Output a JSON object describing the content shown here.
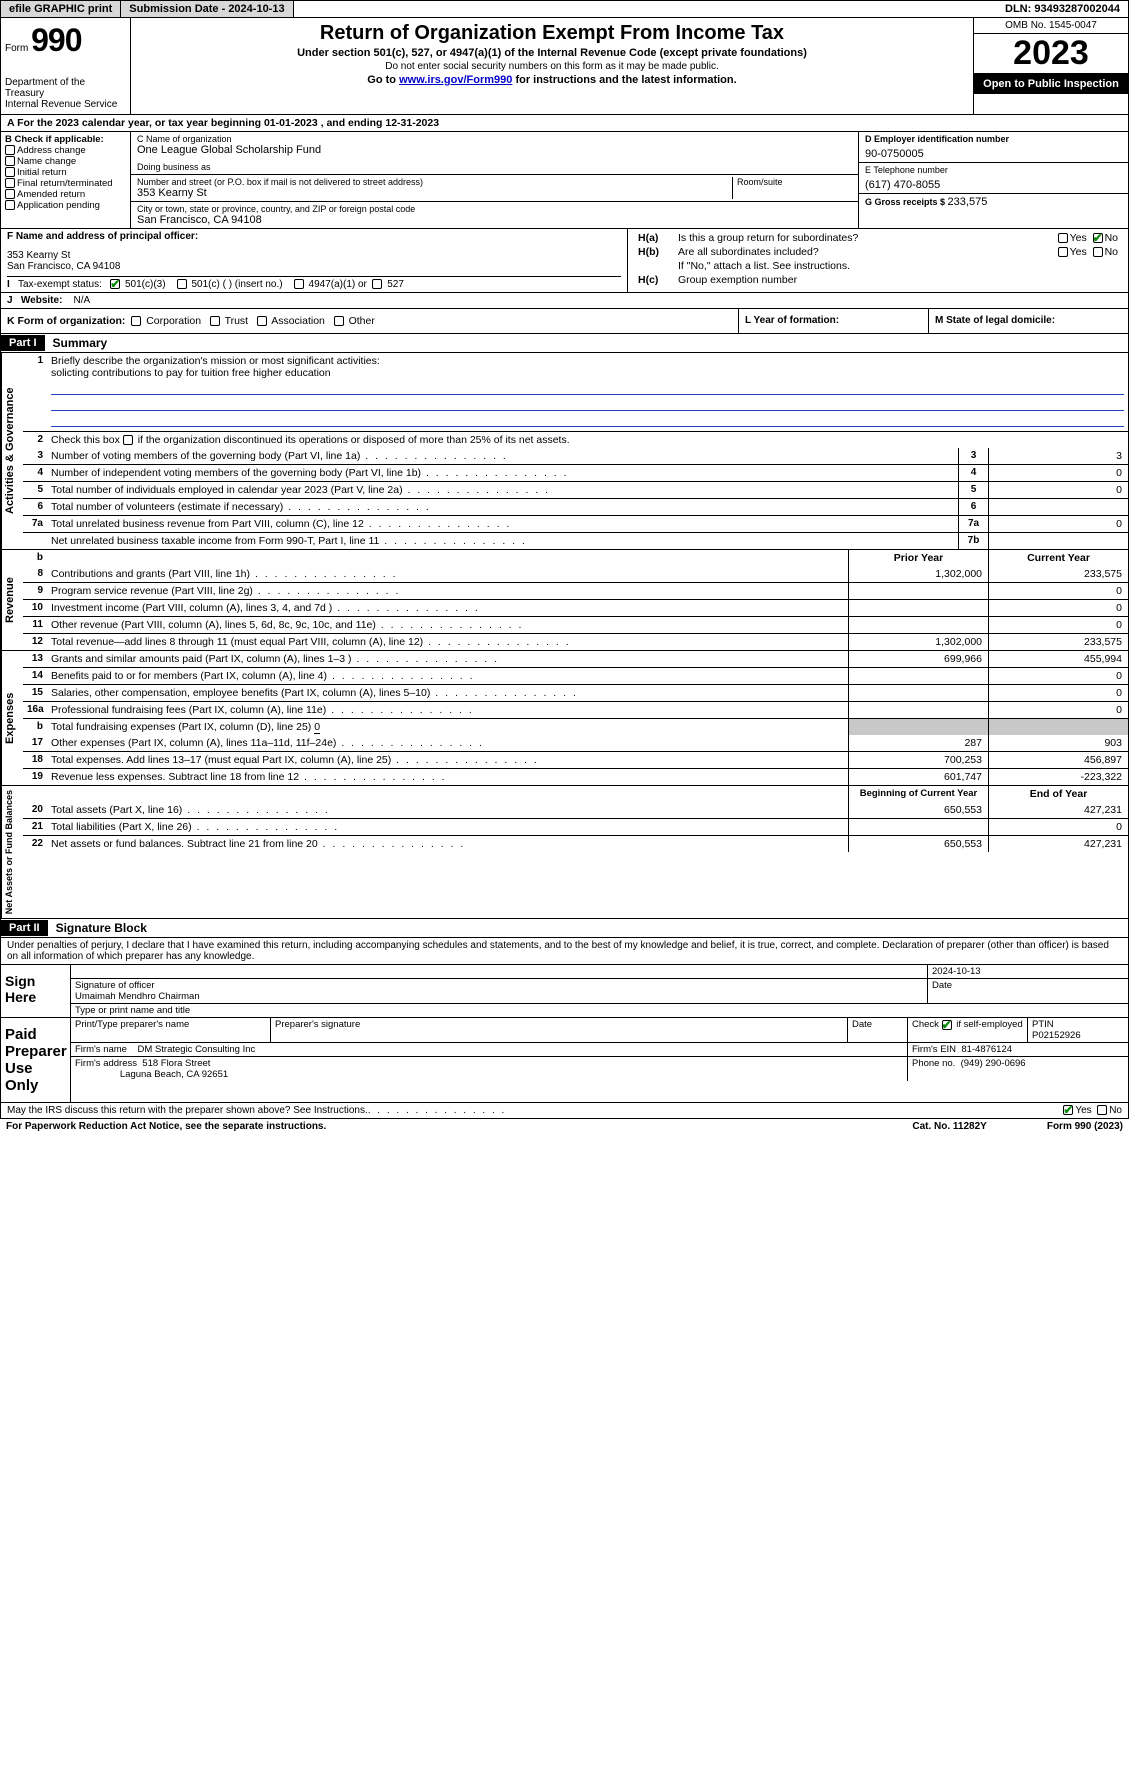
{
  "topbar": {
    "efile": "efile GRAPHIC print",
    "submission_label": "Submission Date - 2024-10-13",
    "dln_label": "DLN: 93493287002044"
  },
  "header": {
    "form_word": "Form",
    "form_num": "990",
    "dept": "Department of the Treasury",
    "irs": "Internal Revenue Service",
    "title": "Return of Organization Exempt From Income Tax",
    "sub1": "Under section 501(c), 527, or 4947(a)(1) of the Internal Revenue Code (except private foundations)",
    "sub2": "Do not enter social security numbers on this form as it may be made public.",
    "sub3_pre": "Go to ",
    "sub3_link": "www.irs.gov/Form990",
    "sub3_post": " for instructions and the latest information.",
    "omb": "OMB No. 1545-0047",
    "year": "2023",
    "inspection": "Open to Public Inspection"
  },
  "period": {
    "a_pre": "A For the 2023 calendar year, or tax year beginning ",
    "begin": "01-01-2023",
    "mid": "  , and ending ",
    "end": "12-31-2023"
  },
  "boxB": {
    "label": "B Check if applicable:",
    "items": [
      "Address change",
      "Name change",
      "Initial return",
      "Final return/terminated",
      "Amended return",
      "Application pending"
    ]
  },
  "boxC": {
    "name_label": "C Name of organization",
    "name": "One League Global Scholarship Fund",
    "dba_label": "Doing business as",
    "street_label": "Number and street (or P.O. box if mail is not delivered to street address)",
    "room_label": "Room/suite",
    "street": "353 Kearny St",
    "city_label": "City or town, state or province, country, and ZIP or foreign postal code",
    "city": "San Francisco, CA  94108"
  },
  "boxDE": {
    "d_label": "D Employer identification number",
    "ein": "90-0750005",
    "e_label": "E Telephone number",
    "phone": "(617) 470-8055",
    "g_label": "G Gross receipts $ ",
    "g_val": "233,575"
  },
  "boxF": {
    "label": "F  Name and address of principal officer:",
    "line1": "353 Kearny St",
    "line2": "San Francisco, CA  94108"
  },
  "boxH": {
    "a_label": "Is this a group return for subordinates?",
    "b_label": "Are all subordinates included?",
    "b_note": "If \"No,\" attach a list. See instructions.",
    "c_label": "Group exemption number",
    "yes": "Yes",
    "no": "No"
  },
  "taxexempt": {
    "i_label": "Tax-exempt status:",
    "o1": "501(c)(3)",
    "o2": "501(c) (  ) (insert no.)",
    "o3": "4947(a)(1) or",
    "o4": "527"
  },
  "website": {
    "j_label": "Website:",
    "val": "N/A"
  },
  "boxK": {
    "label": "K Form of organization:",
    "opts": [
      "Corporation",
      "Trust",
      "Association",
      "Other"
    ],
    "l_label": "L Year of formation:",
    "m_label": "M State of legal domicile:"
  },
  "part1": {
    "header": "Part I",
    "title": "Summary",
    "l1_label": "Briefly describe the organization's mission or most significant activities:",
    "l1_val": "solicting contributions to pay for tuition free higher education",
    "l2_label": "Check this box ",
    "l2_post": " if the organization discontinued its operations or disposed of more than 25% of its net assets.",
    "vlabels": {
      "gov": "Activities & Governance",
      "rev": "Revenue",
      "exp": "Expenses",
      "net": "Net Assets or Fund Balances"
    },
    "lines_gov": [
      {
        "n": "3",
        "t": "Number of voting members of the governing body (Part VI, line 1a)",
        "box": "3",
        "v": "3"
      },
      {
        "n": "4",
        "t": "Number of independent voting members of the governing body (Part VI, line 1b)",
        "box": "4",
        "v": "0"
      },
      {
        "n": "5",
        "t": "Total number of individuals employed in calendar year 2023 (Part V, line 2a)",
        "box": "5",
        "v": "0"
      },
      {
        "n": "6",
        "t": "Total number of volunteers (estimate if necessary)",
        "box": "6",
        "v": ""
      },
      {
        "n": "7a",
        "t": "Total unrelated business revenue from Part VIII, column (C), line 12",
        "box": "7a",
        "v": "0"
      },
      {
        "n": "",
        "t": "Net unrelated business taxable income from Form 990-T, Part I, line 11",
        "box": "7b",
        "v": ""
      }
    ],
    "col_headers": {
      "b": "b",
      "prior": "Prior Year",
      "current": "Current Year"
    },
    "lines_rev": [
      {
        "n": "8",
        "t": "Contributions and grants (Part VIII, line 1h)",
        "p": "1,302,000",
        "c": "233,575"
      },
      {
        "n": "9",
        "t": "Program service revenue (Part VIII, line 2g)",
        "p": "",
        "c": "0"
      },
      {
        "n": "10",
        "t": "Investment income (Part VIII, column (A), lines 3, 4, and 7d )",
        "p": "",
        "c": "0"
      },
      {
        "n": "11",
        "t": "Other revenue (Part VIII, column (A), lines 5, 6d, 8c, 9c, 10c, and 11e)",
        "p": "",
        "c": "0"
      },
      {
        "n": "12",
        "t": "Total revenue—add lines 8 through 11 (must equal Part VIII, column (A), line 12)",
        "p": "1,302,000",
        "c": "233,575"
      }
    ],
    "lines_exp": [
      {
        "n": "13",
        "t": "Grants and similar amounts paid (Part IX, column (A), lines 1–3 )",
        "p": "699,966",
        "c": "455,994"
      },
      {
        "n": "14",
        "t": "Benefits paid to or for members (Part IX, column (A), line 4)",
        "p": "",
        "c": "0"
      },
      {
        "n": "15",
        "t": "Salaries, other compensation, employee benefits (Part IX, column (A), lines 5–10)",
        "p": "",
        "c": "0"
      },
      {
        "n": "16a",
        "t": "Professional fundraising fees (Part IX, column (A), line 11e)",
        "p": "",
        "c": "0"
      }
    ],
    "line_b": {
      "n": "b",
      "t": "Total fundraising expenses (Part IX, column (D), line 25) ",
      "v": "0"
    },
    "lines_exp2": [
      {
        "n": "17",
        "t": "Other expenses (Part IX, column (A), lines 11a–11d, 11f–24e)",
        "p": "287",
        "c": "903"
      },
      {
        "n": "18",
        "t": "Total expenses. Add lines 13–17 (must equal Part IX, column (A), line 25)",
        "p": "700,253",
        "c": "456,897"
      },
      {
        "n": "19",
        "t": "Revenue less expenses. Subtract line 18 from line 12",
        "p": "601,747",
        "c": "-223,322"
      }
    ],
    "net_headers": {
      "begin": "Beginning of Current Year",
      "end": "End of Year"
    },
    "lines_net": [
      {
        "n": "20",
        "t": "Total assets (Part X, line 16)",
        "p": "650,553",
        "c": "427,231"
      },
      {
        "n": "21",
        "t": "Total liabilities (Part X, line 26)",
        "p": "",
        "c": "0"
      },
      {
        "n": "22",
        "t": "Net assets or fund balances. Subtract line 21 from line 20",
        "p": "650,553",
        "c": "427,231"
      }
    ]
  },
  "part2": {
    "header": "Part II",
    "title": "Signature Block",
    "decl": "Under penalties of perjury, I declare that I have examined this return, including accompanying schedules and statements, and to the best of my knowledge and belief, it is true, correct, and complete. Declaration of preparer (other than officer) is based on all information of which preparer has any knowledge.",
    "sign_here": "Sign Here",
    "sig_date": "2024-10-13",
    "sig_officer_label": "Signature of officer",
    "officer_name": "Umaimah Mendhro Chairman",
    "type_print": "Type or print name and title",
    "date_label": "Date",
    "paid": "Paid Preparer Use Only",
    "prep_name_label": "Print/Type preparer's name",
    "prep_sig_label": "Preparer's signature",
    "check_self": "Check         if self-employed",
    "ptin_label": "PTIN",
    "ptin": "P02152926",
    "firm_name_label": "Firm's name",
    "firm_name": "DM Strategic Consulting Inc",
    "firm_ein_label": "Firm's EIN",
    "firm_ein": "81-4876124",
    "firm_addr_label": "Firm's address",
    "firm_addr1": "518 Flora Street",
    "firm_addr2": "Laguna Beach, CA  92651",
    "phone_label": "Phone no.",
    "phone": "(949) 290-0696",
    "discuss": "May the IRS discuss this return with the preparer shown above? See Instructions.",
    "yes": "Yes",
    "no": "No"
  },
  "footer": {
    "pra": "For Paperwork Reduction Act Notice, see the separate instructions.",
    "cat": "Cat. No. 11282Y",
    "form": "Form 990 (2023)"
  }
}
